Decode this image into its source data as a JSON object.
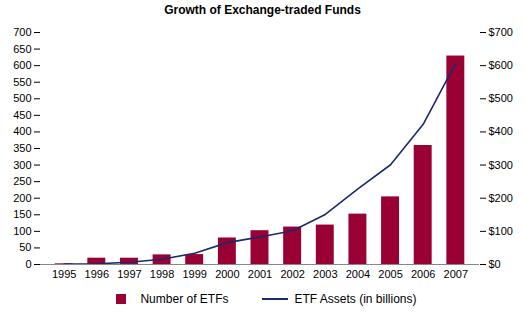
{
  "chart_data": {
    "type": "bar",
    "title": "Growth of Exchange-traded Funds",
    "categories": [
      "1995",
      "1996",
      "1997",
      "1998",
      "1999",
      "2000",
      "2001",
      "2002",
      "2003",
      "2004",
      "2005",
      "2006",
      "2007"
    ],
    "series": [
      {
        "name": "Number of ETFs",
        "type": "bar",
        "color": "#990033",
        "values": [
          2,
          19,
          19,
          29,
          30,
          80,
          102,
          113,
          119,
          152,
          204,
          359,
          629
        ]
      },
      {
        "name": "ETF Assets (in billions)",
        "type": "line",
        "color": "#1a2a6c",
        "axis": "y2",
        "values": [
          1,
          2,
          7,
          16,
          34,
          66,
          83,
          102,
          151,
          228,
          301,
          423,
          608
        ]
      }
    ],
    "ylim": [
      0,
      700
    ],
    "yticks": [
      0,
      50,
      100,
      150,
      200,
      250,
      300,
      350,
      400,
      450,
      500,
      550,
      600,
      650,
      700
    ],
    "y2lim": [
      0,
      700
    ],
    "y2ticks": [
      {
        "value": 0,
        "label": "$0"
      },
      {
        "value": 100,
        "label": "$100"
      },
      {
        "value": 200,
        "label": "$200"
      },
      {
        "value": 300,
        "label": "$300"
      },
      {
        "value": 400,
        "label": "$400"
      },
      {
        "value": 500,
        "label": "$500"
      },
      {
        "value": 600,
        "label": "$600"
      },
      {
        "value": 700,
        "label": "$700"
      }
    ],
    "grid": false,
    "legend": "bottom"
  }
}
